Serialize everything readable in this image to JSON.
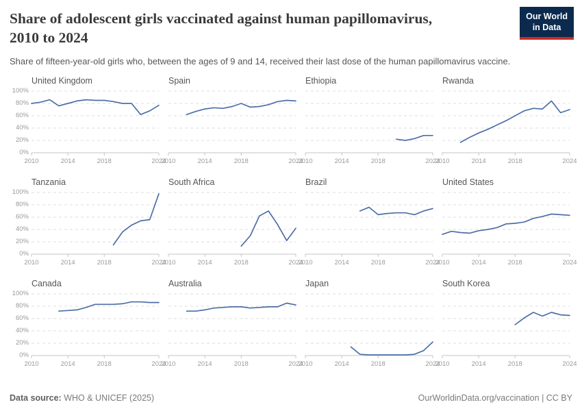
{
  "header": {
    "title_line1": "Share of adolescent girls vaccinated against human papillomavirus,",
    "title_line2": "2010 to 2024",
    "subtitle": "Share of fifteen-year-old girls who, between the ages of 9 and 14, received their last dose of the human papillomavirus vaccine.",
    "logo": {
      "line1": "Our World",
      "line2": "in Data",
      "bg_color": "#0b2a4e",
      "accent_color": "#cc2a23"
    }
  },
  "footer": {
    "source_label": "Data source:",
    "source_value": " WHO & UNICEF (2025)",
    "attribution": "OurWorldinData.org/vaccination | CC BY"
  },
  "chart_data": {
    "type": "line",
    "title": "Share of adolescent girls vaccinated against human papillomavirus, 2010 to 2024",
    "xlabel": "",
    "ylabel": "",
    "x_range": [
      2010,
      2024
    ],
    "x_ticks": [
      2010,
      2014,
      2018,
      2024
    ],
    "ylim": [
      0,
      100
    ],
    "y_ticks": [
      "0%",
      "20%",
      "40%",
      "60%",
      "80%",
      "100%"
    ],
    "grid": true,
    "legend_position": "none",
    "line_color": "#4d6ea7",
    "grid_color": "#dcdcdc",
    "axis_color": "#c4c4c4",
    "series": [
      {
        "name": "United Kingdom",
        "start_year": 2010,
        "values": [
          80,
          82,
          86,
          76,
          80,
          84,
          86,
          85,
          85,
          83,
          80,
          80,
          62,
          68,
          77
        ]
      },
      {
        "name": "Spain",
        "start_year": 2012,
        "values": [
          62,
          67,
          71,
          73,
          72,
          75,
          80,
          74,
          75,
          78,
          83,
          85,
          84
        ]
      },
      {
        "name": "Ethiopia",
        "start_year": 2020,
        "values": [
          22,
          20,
          23,
          28,
          28
        ]
      },
      {
        "name": "Rwanda",
        "start_year": 2012,
        "values": [
          17,
          25,
          32,
          38,
          45,
          52,
          60,
          68,
          72,
          71,
          84,
          65,
          70
        ]
      },
      {
        "name": "Tanzania",
        "start_year": 2019,
        "values": [
          15,
          36,
          47,
          54,
          56,
          98
        ]
      },
      {
        "name": "South Africa",
        "start_year": 2018,
        "values": [
          13,
          30,
          62,
          70,
          48,
          22,
          42
        ]
      },
      {
        "name": "Brazil",
        "start_year": 2016,
        "values": [
          70,
          76,
          64,
          66,
          67,
          67,
          64,
          70,
          74
        ]
      },
      {
        "name": "United States",
        "start_year": 2010,
        "values": [
          32,
          37,
          35,
          34,
          38,
          40,
          43,
          49,
          50,
          52,
          58,
          61,
          65,
          64,
          63
        ]
      },
      {
        "name": "Canada",
        "start_year": 2013,
        "values": [
          72,
          73,
          74,
          78,
          83,
          83,
          83,
          84,
          87,
          87,
          86,
          86
        ]
      },
      {
        "name": "Australia",
        "start_year": 2012,
        "values": [
          72,
          72,
          74,
          77,
          78,
          79,
          79,
          77,
          78,
          79,
          79,
          85,
          82
        ]
      },
      {
        "name": "Japan",
        "start_year": 2015,
        "values": [
          14,
          2,
          1,
          1,
          1,
          1,
          1,
          2,
          8,
          22
        ]
      },
      {
        "name": "South Korea",
        "start_year": 2018,
        "values": [
          50,
          61,
          70,
          64,
          70,
          66,
          65
        ]
      }
    ]
  }
}
